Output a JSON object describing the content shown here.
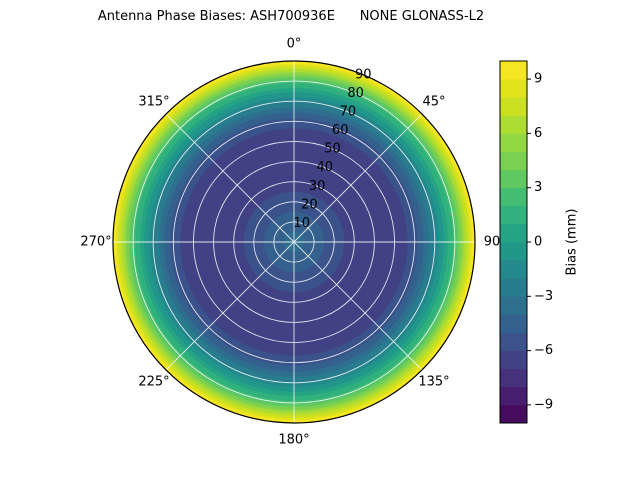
{
  "chart_data": {
    "type": "polar_contour",
    "title": "Antenna Phase Biases: ASH700936E      NONE GLONASS-L2",
    "theta_ticks": [
      {
        "deg": 0,
        "label": "0°"
      },
      {
        "deg": 45,
        "label": "45°"
      },
      {
        "deg": 90,
        "label": "90"
      },
      {
        "deg": 135,
        "label": "135°"
      },
      {
        "deg": 180,
        "label": "180°"
      },
      {
        "deg": 225,
        "label": "225°"
      },
      {
        "deg": 270,
        "label": "270°"
      },
      {
        "deg": 315,
        "label": "315°"
      }
    ],
    "r_ticks": [
      "10",
      "20",
      "30",
      "40",
      "50",
      "60",
      "70",
      "80",
      "90"
    ],
    "r_tick_values": [
      10,
      20,
      30,
      40,
      50,
      60,
      70,
      80,
      90
    ],
    "r_max": 90,
    "r_label_angle_deg": 22.5,
    "radial_profile": {
      "r": [
        0,
        10,
        20,
        30,
        40,
        50,
        60,
        70,
        80,
        90
      ],
      "bias_mm": [
        -3.5,
        -4.5,
        -5.5,
        -6.5,
        -7.0,
        -7.0,
        -5.5,
        -2.0,
        2.5,
        10.0
      ]
    },
    "contour_step_mm": 1,
    "value_range": [
      -10,
      10
    ],
    "colormap": "viridis",
    "grid": true,
    "colorbar": {
      "label": "Bias (mm)",
      "ticks": [
        9,
        6,
        3,
        0,
        -3,
        -6,
        -9
      ],
      "tick_labels": [
        "9",
        "6",
        "3",
        "0",
        "−3",
        "−6",
        "−9"
      ],
      "position": "right"
    }
  },
  "colors": {
    "background": "#ffffff",
    "grid_line": "#ffffff",
    "axis_outline": "#000000",
    "text": "#000000",
    "viridis_stops": [
      "#440154",
      "#482878",
      "#3e4a89",
      "#31688e",
      "#26828e",
      "#1f9e89",
      "#35b779",
      "#6dcd59",
      "#9fda3a",
      "#d8e219",
      "#fde725"
    ]
  }
}
